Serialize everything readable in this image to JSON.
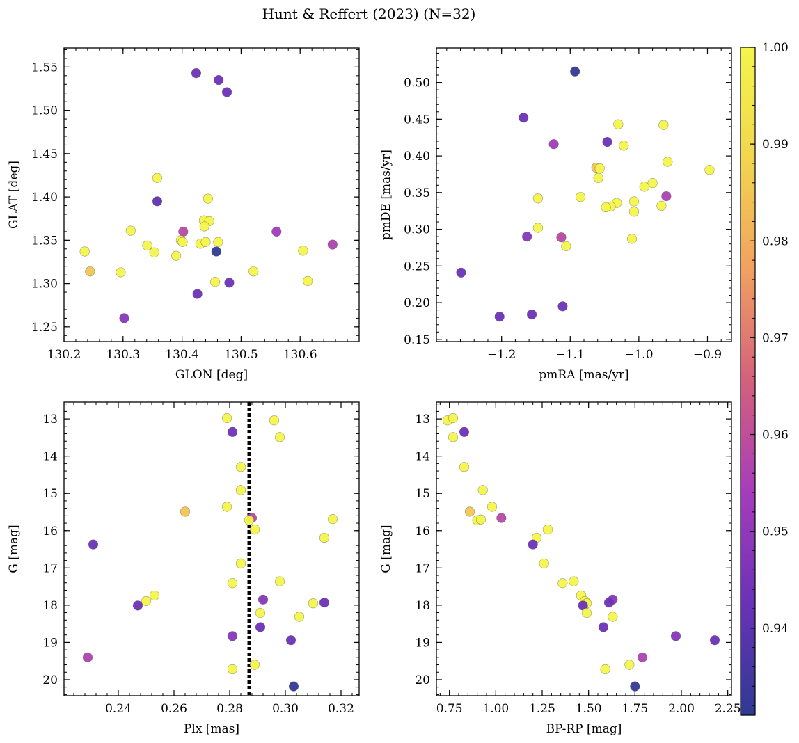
{
  "figure": {
    "title": "Hunt & Reffert (2023) (N=32)"
  },
  "colorbar": {
    "min": 0.931,
    "max": 1.0,
    "ticks": [
      "0.94",
      "0.95",
      "0.96",
      "0.97",
      "0.98",
      "0.99",
      "1.00"
    ],
    "colormap": "plasma",
    "colors": [
      "#2e3a92",
      "#6a32b8",
      "#a63cbc",
      "#d4607c",
      "#f2a060",
      "#f2d64e",
      "#f4f54a"
    ]
  },
  "chart_data": [
    {
      "type": "scatter",
      "xlabel": "GLON [deg]",
      "ylabel": "GLAT [deg]",
      "xlim": [
        130.2,
        130.7
      ],
      "ylim": [
        1.233,
        1.572
      ],
      "xticks": [
        "130.2",
        "130.3",
        "130.4",
        "130.5",
        "130.6"
      ],
      "yticks": [
        "1.25",
        "1.30",
        "1.35",
        "1.40",
        "1.45",
        "1.50",
        "1.55"
      ],
      "grid": false,
      "points": [
        {
          "x": 130.424,
          "y": 1.543,
          "c": 0.943
        },
        {
          "x": 130.462,
          "y": 1.535,
          "c": 0.943
        },
        {
          "x": 130.476,
          "y": 1.521,
          "c": 0.943
        },
        {
          "x": 130.358,
          "y": 1.422,
          "c": 1.0
        },
        {
          "x": 130.358,
          "y": 1.395,
          "c": 0.941
        },
        {
          "x": 130.444,
          "y": 1.398,
          "c": 1.0
        },
        {
          "x": 130.437,
          "y": 1.373,
          "c": 1.0
        },
        {
          "x": 130.446,
          "y": 1.372,
          "c": 1.0
        },
        {
          "x": 130.438,
          "y": 1.366,
          "c": 1.0
        },
        {
          "x": 130.313,
          "y": 1.361,
          "c": 1.0
        },
        {
          "x": 130.402,
          "y": 1.36,
          "c": 0.958
        },
        {
          "x": 130.56,
          "y": 1.36,
          "c": 0.953
        },
        {
          "x": 130.398,
          "y": 1.35,
          "c": 1.0
        },
        {
          "x": 130.401,
          "y": 1.348,
          "c": 1.0
        },
        {
          "x": 130.431,
          "y": 1.346,
          "c": 1.0
        },
        {
          "x": 130.44,
          "y": 1.348,
          "c": 1.0
        },
        {
          "x": 130.461,
          "y": 1.348,
          "c": 1.0
        },
        {
          "x": 130.341,
          "y": 1.344,
          "c": 1.0
        },
        {
          "x": 130.655,
          "y": 1.345,
          "c": 0.956
        },
        {
          "x": 130.235,
          "y": 1.337,
          "c": 1.0
        },
        {
          "x": 130.353,
          "y": 1.336,
          "c": 1.0
        },
        {
          "x": 130.458,
          "y": 1.337,
          "c": 0.932
        },
        {
          "x": 130.605,
          "y": 1.338,
          "c": 1.0
        },
        {
          "x": 130.39,
          "y": 1.332,
          "c": 1.0
        },
        {
          "x": 130.244,
          "y": 1.314,
          "c": 0.985
        },
        {
          "x": 130.296,
          "y": 1.313,
          "c": 1.0
        },
        {
          "x": 130.521,
          "y": 1.314,
          "c": 1.0
        },
        {
          "x": 130.456,
          "y": 1.302,
          "c": 1.0
        },
        {
          "x": 130.48,
          "y": 1.301,
          "c": 0.943
        },
        {
          "x": 130.613,
          "y": 1.303,
          "c": 1.0
        },
        {
          "x": 130.426,
          "y": 1.288,
          "c": 0.943
        },
        {
          "x": 130.302,
          "y": 1.26,
          "c": 0.948
        }
      ]
    },
    {
      "type": "scatter",
      "xlabel": "pmRA [mas/yr]",
      "ylabel": "pmDE [mas/yr]",
      "xlim": [
        -1.295,
        -0.865
      ],
      "ylim": [
        0.147,
        0.547
      ],
      "xticks": [
        "−1.2",
        "−1.1",
        "−1.0",
        "−0.9"
      ],
      "yticks": [
        "0.15",
        "0.20",
        "0.25",
        "0.30",
        "0.35",
        "0.40",
        "0.45",
        "0.50"
      ],
      "grid": false,
      "points": [
        {
          "x": -1.093,
          "y": 0.515,
          "c": 0.932
        },
        {
          "x": -1.168,
          "y": 0.452,
          "c": 0.943
        },
        {
          "x": -1.03,
          "y": 0.443,
          "c": 1.0
        },
        {
          "x": -0.964,
          "y": 0.442,
          "c": 1.0
        },
        {
          "x": -1.046,
          "y": 0.419,
          "c": 0.943
        },
        {
          "x": -1.124,
          "y": 0.416,
          "c": 0.953
        },
        {
          "x": -1.022,
          "y": 0.414,
          "c": 1.0
        },
        {
          "x": -0.958,
          "y": 0.392,
          "c": 1.0
        },
        {
          "x": -1.062,
          "y": 0.384,
          "c": 0.985
        },
        {
          "x": -1.057,
          "y": 0.383,
          "c": 1.0
        },
        {
          "x": -0.897,
          "y": 0.381,
          "c": 1.0
        },
        {
          "x": -1.059,
          "y": 0.37,
          "c": 1.0
        },
        {
          "x": -0.98,
          "y": 0.363,
          "c": 1.0
        },
        {
          "x": -0.992,
          "y": 0.358,
          "c": 1.0
        },
        {
          "x": -0.96,
          "y": 0.345,
          "c": 0.956
        },
        {
          "x": -1.085,
          "y": 0.344,
          "c": 1.0
        },
        {
          "x": -1.147,
          "y": 0.342,
          "c": 1.0
        },
        {
          "x": -1.007,
          "y": 0.338,
          "c": 1.0
        },
        {
          "x": -1.032,
          "y": 0.336,
          "c": 1.0
        },
        {
          "x": -0.967,
          "y": 0.332,
          "c": 1.0
        },
        {
          "x": -1.041,
          "y": 0.331,
          "c": 1.0
        },
        {
          "x": -1.048,
          "y": 0.33,
          "c": 1.0
        },
        {
          "x": -1.007,
          "y": 0.324,
          "c": 1.0
        },
        {
          "x": -1.147,
          "y": 0.302,
          "c": 1.0
        },
        {
          "x": -1.163,
          "y": 0.29,
          "c": 0.948
        },
        {
          "x": -1.113,
          "y": 0.289,
          "c": 0.958
        },
        {
          "x": -1.01,
          "y": 0.287,
          "c": 1.0
        },
        {
          "x": -1.106,
          "y": 0.277,
          "c": 1.0
        },
        {
          "x": -1.259,
          "y": 0.241,
          "c": 0.943
        },
        {
          "x": -1.111,
          "y": 0.195,
          "c": 0.943
        },
        {
          "x": -1.156,
          "y": 0.184,
          "c": 0.943
        },
        {
          "x": -1.203,
          "y": 0.181,
          "c": 0.943
        }
      ]
    },
    {
      "type": "scatter",
      "xlabel": "Plx [mas]",
      "ylabel": "G [mag]",
      "xlim": [
        0.2205,
        0.3265
      ],
      "ylim": [
        20.43,
        12.55
      ],
      "yinverted": true,
      "xticks": [
        "0.24",
        "0.26",
        "0.28",
        "0.30",
        "0.32"
      ],
      "yticks": [
        "13",
        "14",
        "15",
        "16",
        "17",
        "18",
        "19",
        "20"
      ],
      "grid": false,
      "vline": {
        "x": 0.287,
        "style": "dotted"
      },
      "points": [
        {
          "x": 0.279,
          "y": 12.98,
          "c": 1.0
        },
        {
          "x": 0.296,
          "y": 13.04,
          "c": 1.0
        },
        {
          "x": 0.281,
          "y": 13.35,
          "c": 0.943
        },
        {
          "x": 0.298,
          "y": 13.49,
          "c": 1.0
        },
        {
          "x": 0.284,
          "y": 14.29,
          "c": 1.0
        },
        {
          "x": 0.284,
          "y": 14.91,
          "c": 1.0
        },
        {
          "x": 0.279,
          "y": 15.36,
          "c": 1.0
        },
        {
          "x": 0.264,
          "y": 15.49,
          "c": 0.985
        },
        {
          "x": 0.288,
          "y": 15.66,
          "c": 0.958
        },
        {
          "x": 0.287,
          "y": 15.72,
          "c": 1.0
        },
        {
          "x": 0.317,
          "y": 15.69,
          "c": 1.0
        },
        {
          "x": 0.289,
          "y": 15.97,
          "c": 1.0
        },
        {
          "x": 0.314,
          "y": 16.19,
          "c": 1.0
        },
        {
          "x": 0.231,
          "y": 16.37,
          "c": 0.943
        },
        {
          "x": 0.284,
          "y": 16.88,
          "c": 1.0
        },
        {
          "x": 0.281,
          "y": 17.41,
          "c": 1.0
        },
        {
          "x": 0.298,
          "y": 17.36,
          "c": 1.0
        },
        {
          "x": 0.253,
          "y": 17.74,
          "c": 1.0
        },
        {
          "x": 0.292,
          "y": 17.85,
          "c": 0.948
        },
        {
          "x": 0.25,
          "y": 17.89,
          "c": 1.0
        },
        {
          "x": 0.31,
          "y": 17.95,
          "c": 1.0
        },
        {
          "x": 0.314,
          "y": 17.93,
          "c": 0.943
        },
        {
          "x": 0.247,
          "y": 18.01,
          "c": 0.943
        },
        {
          "x": 0.291,
          "y": 18.21,
          "c": 1.0
        },
        {
          "x": 0.305,
          "y": 18.31,
          "c": 1.0
        },
        {
          "x": 0.291,
          "y": 18.59,
          "c": 0.943
        },
        {
          "x": 0.281,
          "y": 18.83,
          "c": 0.948
        },
        {
          "x": 0.302,
          "y": 18.94,
          "c": 0.943
        },
        {
          "x": 0.229,
          "y": 19.4,
          "c": 0.956
        },
        {
          "x": 0.289,
          "y": 19.6,
          "c": 1.0
        },
        {
          "x": 0.281,
          "y": 19.72,
          "c": 1.0
        },
        {
          "x": 0.303,
          "y": 20.18,
          "c": 0.932
        }
      ]
    },
    {
      "type": "scatter",
      "xlabel": "BP-RP [mag]",
      "ylabel": "G [mag]",
      "xlim": [
        0.68,
        2.27
      ],
      "ylim": [
        20.43,
        12.55
      ],
      "yinverted": true,
      "xticks": [
        "0.75",
        "1.00",
        "1.25",
        "1.50",
        "1.75",
        "2.00",
        "2.25"
      ],
      "yticks": [
        "13",
        "14",
        "15",
        "16",
        "17",
        "18",
        "19",
        "20"
      ],
      "grid": false,
      "points": [
        {
          "x": 0.74,
          "y": 13.04,
          "c": 1.0
        },
        {
          "x": 0.77,
          "y": 12.98,
          "c": 1.0
        },
        {
          "x": 0.77,
          "y": 13.49,
          "c": 1.0
        },
        {
          "x": 0.83,
          "y": 13.35,
          "c": 0.943
        },
        {
          "x": 0.83,
          "y": 14.29,
          "c": 1.0
        },
        {
          "x": 0.93,
          "y": 14.91,
          "c": 1.0
        },
        {
          "x": 0.98,
          "y": 15.36,
          "c": 1.0
        },
        {
          "x": 0.86,
          "y": 15.49,
          "c": 0.985
        },
        {
          "x": 1.03,
          "y": 15.66,
          "c": 0.958
        },
        {
          "x": 0.9,
          "y": 15.72,
          "c": 1.0
        },
        {
          "x": 0.92,
          "y": 15.7,
          "c": 1.0
        },
        {
          "x": 1.28,
          "y": 15.97,
          "c": 1.0
        },
        {
          "x": 1.22,
          "y": 16.19,
          "c": 1.0
        },
        {
          "x": 1.2,
          "y": 16.37,
          "c": 0.943
        },
        {
          "x": 1.26,
          "y": 16.88,
          "c": 1.0
        },
        {
          "x": 1.36,
          "y": 17.41,
          "c": 1.0
        },
        {
          "x": 1.42,
          "y": 17.36,
          "c": 1.0
        },
        {
          "x": 1.46,
          "y": 17.74,
          "c": 1.0
        },
        {
          "x": 1.63,
          "y": 17.85,
          "c": 0.948
        },
        {
          "x": 1.48,
          "y": 17.89,
          "c": 1.0
        },
        {
          "x": 1.49,
          "y": 17.95,
          "c": 1.0
        },
        {
          "x": 1.61,
          "y": 17.93,
          "c": 0.943
        },
        {
          "x": 1.47,
          "y": 18.01,
          "c": 0.943
        },
        {
          "x": 1.49,
          "y": 18.21,
          "c": 1.0
        },
        {
          "x": 1.63,
          "y": 18.31,
          "c": 1.0
        },
        {
          "x": 1.58,
          "y": 18.59,
          "c": 0.943
        },
        {
          "x": 1.97,
          "y": 18.83,
          "c": 0.948
        },
        {
          "x": 2.18,
          "y": 18.94,
          "c": 0.943
        },
        {
          "x": 1.79,
          "y": 19.4,
          "c": 0.956
        },
        {
          "x": 1.72,
          "y": 19.6,
          "c": 1.0
        },
        {
          "x": 1.59,
          "y": 19.72,
          "c": 1.0
        },
        {
          "x": 1.75,
          "y": 20.18,
          "c": 0.932
        }
      ]
    }
  ]
}
